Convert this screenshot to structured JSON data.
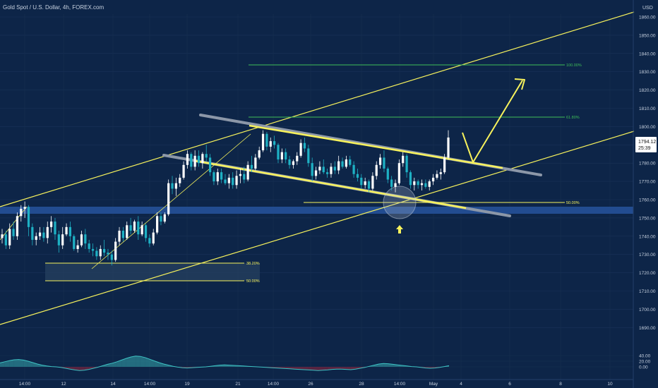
{
  "header": {
    "symbol_title": "Gold Spot / U.S. Dollar, 4h, FOREX.com",
    "currency": "USD"
  },
  "price_badge": {
    "price": "1794.12",
    "countdown": "25:39"
  },
  "colors": {
    "background": "#0d2548",
    "bull_candle": "#ffffff",
    "bear_candle": "#1eb1c4",
    "yellow": "#f7f25c",
    "green": "#3fbf57",
    "zone_blue": "#2a5aa8",
    "gray_line": "#8c97a8",
    "osc_teal": "#3ec3c4",
    "osc_red": "#b3243a"
  },
  "chart_data": {
    "type": "candlestick",
    "title": "Gold Spot / U.S. Dollar, 4h, FOREX.com",
    "y_axis": {
      "unit": "USD",
      "range": [
        1678,
        1869
      ],
      "ticks": [
        1690,
        1700,
        1710,
        1720,
        1730,
        1740,
        1750,
        1760,
        1770,
        1780,
        1790,
        1800,
        1810,
        1820,
        1830,
        1840,
        1850,
        1860
      ]
    },
    "x_axis": {
      "ticks": [
        "14:00",
        "12",
        "14",
        "14:00",
        "19",
        "21",
        "14:00",
        "26",
        "28",
        "14:00",
        "May",
        "4",
        "6",
        "8",
        "10"
      ]
    },
    "last_price": 1794.12,
    "candles_ohlc": [
      [
        1739,
        1744,
        1736,
        1741
      ],
      [
        1741,
        1743,
        1733,
        1735
      ],
      [
        1735,
        1747,
        1733,
        1744
      ],
      [
        1744,
        1748,
        1738,
        1740
      ],
      [
        1740,
        1753,
        1738,
        1751
      ],
      [
        1751,
        1757,
        1748,
        1755
      ],
      [
        1755,
        1759,
        1750,
        1756
      ],
      [
        1756,
        1757,
        1740,
        1745
      ],
      [
        1745,
        1747,
        1735,
        1738
      ],
      [
        1738,
        1742,
        1735,
        1740
      ],
      [
        1740,
        1745,
        1738,
        1742
      ],
      [
        1742,
        1745,
        1737,
        1739
      ],
      [
        1739,
        1748,
        1736,
        1745
      ],
      [
        1745,
        1751,
        1742,
        1748
      ],
      [
        1748,
        1750,
        1738,
        1741
      ],
      [
        1741,
        1743,
        1731,
        1735
      ],
      [
        1735,
        1745,
        1733,
        1741
      ],
      [
        1741,
        1747,
        1740,
        1745
      ],
      [
        1745,
        1748,
        1737,
        1740
      ],
      [
        1740,
        1741,
        1732,
        1733
      ],
      [
        1733,
        1738,
        1731,
        1735
      ],
      [
        1735,
        1743,
        1734,
        1741
      ],
      [
        1741,
        1744,
        1733,
        1736
      ],
      [
        1736,
        1738,
        1731,
        1733
      ],
      [
        1733,
        1736,
        1729,
        1732
      ],
      [
        1732,
        1734,
        1727,
        1729
      ],
      [
        1729,
        1735,
        1727,
        1733
      ],
      [
        1733,
        1738,
        1729,
        1731
      ],
      [
        1731,
        1733,
        1727,
        1730
      ],
      [
        1730,
        1732,
        1724,
        1727
      ],
      [
        1727,
        1739,
        1726,
        1737
      ],
      [
        1737,
        1745,
        1735,
        1743
      ],
      [
        1743,
        1745,
        1737,
        1739
      ],
      [
        1739,
        1748,
        1738,
        1746
      ],
      [
        1746,
        1750,
        1741,
        1743
      ],
      [
        1743,
        1749,
        1742,
        1748
      ],
      [
        1748,
        1751,
        1738,
        1741
      ],
      [
        1741,
        1748,
        1740,
        1746
      ],
      [
        1746,
        1747,
        1737,
        1739
      ],
      [
        1739,
        1741,
        1734,
        1736
      ],
      [
        1736,
        1744,
        1735,
        1742
      ],
      [
        1742,
        1753,
        1741,
        1751
      ],
      [
        1751,
        1753,
        1746,
        1748
      ],
      [
        1748,
        1753,
        1747,
        1752
      ],
      [
        1752,
        1771,
        1751,
        1769
      ],
      [
        1769,
        1773,
        1763,
        1766
      ],
      [
        1766,
        1772,
        1762,
        1769
      ],
      [
        1769,
        1774,
        1767,
        1772
      ],
      [
        1772,
        1781,
        1771,
        1779
      ],
      [
        1779,
        1787,
        1777,
        1785
      ],
      [
        1785,
        1786,
        1776,
        1778
      ],
      [
        1778,
        1787,
        1776,
        1784
      ],
      [
        1784,
        1787,
        1778,
        1780
      ],
      [
        1780,
        1786,
        1777,
        1785
      ],
      [
        1785,
        1790,
        1781,
        1783
      ],
      [
        1783,
        1785,
        1773,
        1775
      ],
      [
        1775,
        1776,
        1768,
        1770
      ],
      [
        1770,
        1777,
        1768,
        1775
      ],
      [
        1775,
        1777,
        1769,
        1771
      ],
      [
        1771,
        1774,
        1768,
        1769
      ],
      [
        1769,
        1774,
        1766,
        1772
      ],
      [
        1772,
        1775,
        1766,
        1768
      ],
      [
        1768,
        1776,
        1766,
        1773
      ],
      [
        1773,
        1777,
        1769,
        1774
      ],
      [
        1774,
        1778,
        1769,
        1771
      ],
      [
        1771,
        1781,
        1770,
        1779
      ],
      [
        1779,
        1784,
        1775,
        1777
      ],
      [
        1777,
        1785,
        1776,
        1783
      ],
      [
        1783,
        1789,
        1782,
        1787
      ],
      [
        1787,
        1798,
        1786,
        1796
      ],
      [
        1796,
        1797,
        1787,
        1789
      ],
      [
        1789,
        1794,
        1786,
        1792
      ],
      [
        1792,
        1795,
        1788,
        1790
      ],
      [
        1790,
        1791,
        1780,
        1782
      ],
      [
        1782,
        1788,
        1780,
        1786
      ],
      [
        1786,
        1788,
        1780,
        1782
      ],
      [
        1782,
        1784,
        1777,
        1779
      ],
      [
        1779,
        1782,
        1777,
        1781
      ],
      [
        1781,
        1786,
        1779,
        1784
      ],
      [
        1784,
        1793,
        1783,
        1791
      ],
      [
        1791,
        1794,
        1786,
        1788
      ],
      [
        1788,
        1790,
        1778,
        1780
      ],
      [
        1780,
        1783,
        1770,
        1773
      ],
      [
        1773,
        1778,
        1771,
        1776
      ],
      [
        1776,
        1781,
        1774,
        1778
      ],
      [
        1778,
        1782,
        1774,
        1775
      ],
      [
        1775,
        1777,
        1772,
        1774
      ],
      [
        1774,
        1780,
        1772,
        1778
      ],
      [
        1778,
        1781,
        1774,
        1776
      ],
      [
        1776,
        1784,
        1774,
        1781
      ],
      [
        1781,
        1783,
        1777,
        1778
      ],
      [
        1778,
        1784,
        1777,
        1782
      ],
      [
        1782,
        1784,
        1778,
        1779
      ],
      [
        1779,
        1781,
        1772,
        1774
      ],
      [
        1774,
        1777,
        1770,
        1772
      ],
      [
        1772,
        1774,
        1766,
        1768
      ],
      [
        1768,
        1772,
        1766,
        1770
      ],
      [
        1770,
        1771,
        1764,
        1766
      ],
      [
        1766,
        1775,
        1765,
        1773
      ],
      [
        1773,
        1781,
        1771,
        1779
      ],
      [
        1779,
        1785,
        1777,
        1783
      ],
      [
        1783,
        1787,
        1775,
        1777
      ],
      [
        1777,
        1778,
        1769,
        1771
      ],
      [
        1771,
        1773,
        1765,
        1767
      ],
      [
        1767,
        1771,
        1764,
        1769
      ],
      [
        1769,
        1782,
        1768,
        1780
      ],
      [
        1780,
        1786,
        1778,
        1784
      ],
      [
        1784,
        1785,
        1772,
        1775
      ],
      [
        1775,
        1776,
        1766,
        1768
      ],
      [
        1768,
        1772,
        1765,
        1770
      ],
      [
        1770,
        1771,
        1766,
        1768
      ],
      [
        1768,
        1771,
        1765,
        1769
      ],
      [
        1769,
        1771,
        1766,
        1767
      ],
      [
        1767,
        1771,
        1765,
        1770
      ],
      [
        1770,
        1774,
        1768,
        1772
      ],
      [
        1772,
        1776,
        1771,
        1774
      ],
      [
        1774,
        1777,
        1771,
        1775
      ],
      [
        1775,
        1785,
        1774,
        1783
      ],
      [
        1783,
        1798,
        1782,
        1794
      ]
    ],
    "annotations": [
      {
        "label": "100.00%",
        "price": 1835,
        "type": "fib-level"
      },
      {
        "label": "61.80%",
        "price": 1806,
        "type": "fib-level"
      },
      {
        "label": "50.00%",
        "price": 1761,
        "type": "fib-level"
      },
      {
        "label": "38.20%",
        "price": 1728,
        "type": "fib-level"
      },
      {
        "label": "50.00%",
        "price": 1719,
        "type": "fib-level"
      }
    ],
    "oscillator": {
      "ticks": [
        "40.00",
        "20.00",
        "0.00"
      ],
      "range": [
        -22,
        55
      ],
      "values": [
        14,
        18,
        22,
        25,
        26,
        24,
        20,
        15,
        10,
        6,
        3,
        1,
        0,
        -2,
        -5,
        -8,
        -11,
        -13,
        -12,
        -9,
        -5,
        -1,
        4,
        9,
        13,
        18,
        24,
        30,
        35,
        38,
        37,
        33,
        27,
        21,
        15,
        10,
        6,
        2,
        -1,
        -3,
        -4,
        -3,
        -2,
        -1,
        0,
        2,
        4,
        6,
        7,
        6,
        5,
        4,
        3,
        2,
        1,
        0,
        -1,
        -2,
        -3,
        -4,
        -5,
        -6,
        -7,
        -8,
        -9,
        -10,
        -11,
        -12,
        -13,
        -12,
        -11,
        -9,
        -8,
        -8,
        -9,
        -10,
        -8,
        -5,
        -2,
        2,
        6,
        10,
        12,
        11,
        9,
        7,
        5,
        3,
        1,
        0,
        -2,
        -4,
        -5,
        -4,
        -2,
        1,
        4
      ]
    }
  }
}
